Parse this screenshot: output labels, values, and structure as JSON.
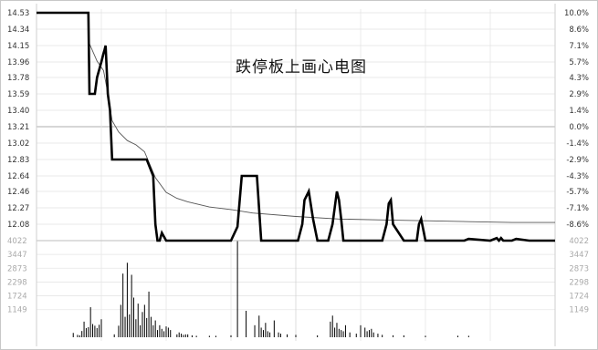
{
  "chart_data": {
    "type": "line",
    "title": "跌停板上画心电图",
    "price_ticks": [
      "14.53",
      "14.34",
      "14.15",
      "13.96",
      "13.78",
      "13.59",
      "13.40",
      "13.21",
      "13.02",
      "12.83",
      "12.64",
      "12.46",
      "12.27",
      "12.08"
    ],
    "pct_ticks": [
      "10.0%",
      "8.6%",
      "7.1%",
      "5.7%",
      "4.3%",
      "2.9%",
      "1.4%",
      "0.0%",
      "-1.4%",
      "-2.9%",
      "-4.3%",
      "-5.7%",
      "-7.1%",
      "-8.6%"
    ],
    "volume_ticks": [
      "4022",
      "3447",
      "2873",
      "2298",
      "1724",
      "1149"
    ],
    "ylim_price": [
      11.89,
      14.53
    ],
    "ylim_volume": [
      0,
      4022
    ],
    "x_minutes_range": [
      0,
      240
    ],
    "series": [
      {
        "role": "price",
        "color": "#000000",
        "x": [
          0,
          24,
          24.5,
          25,
          27,
          28,
          30,
          31,
          31.5,
          32,
          33,
          34,
          35,
          38,
          45,
          51,
          54,
          55,
          56,
          57,
          58,
          60,
          62,
          80,
          90,
          93,
          95,
          100,
          102,
          104,
          112,
          115,
          118,
          121,
          123,
          124,
          126,
          128,
          130,
          133,
          135,
          137,
          138,
          139,
          140,
          141,
          142,
          145,
          150,
          155,
          160,
          162,
          163,
          164,
          165,
          170,
          174,
          176,
          177,
          178,
          180,
          185,
          195,
          198,
          200,
          210,
          213,
          214,
          215,
          216,
          220,
          222,
          228,
          240
        ],
        "y": [
          14.53,
          14.53,
          13.59,
          13.59,
          13.59,
          13.78,
          13.96,
          14.06,
          14.1,
          14.15,
          13.59,
          13.4,
          12.83,
          12.83,
          12.83,
          12.83,
          12.64,
          12.08,
          11.89,
          11.89,
          11.98,
          11.89,
          11.89,
          11.89,
          11.89,
          12.05,
          12.64,
          12.64,
          12.64,
          11.89,
          11.89,
          11.89,
          11.89,
          11.89,
          12.08,
          12.36,
          12.46,
          12.14,
          11.89,
          11.89,
          11.89,
          12.08,
          12.27,
          12.46,
          12.36,
          12.14,
          11.89,
          11.89,
          11.89,
          11.89,
          11.89,
          12.08,
          12.32,
          12.36,
          12.08,
          11.89,
          11.89,
          11.89,
          12.08,
          12.14,
          11.89,
          11.89,
          11.89,
          11.89,
          11.91,
          11.89,
          11.92,
          11.89,
          11.92,
          11.89,
          11.89,
          11.91,
          11.89,
          11.89
        ]
      },
      {
        "role": "average",
        "color": "#555555",
        "x": [
          24,
          28,
          31,
          33,
          35,
          38,
          42,
          46,
          50,
          55,
          60,
          65,
          70,
          80,
          90,
          100,
          120,
          140,
          160,
          180,
          200,
          220,
          240
        ],
        "y": [
          14.2,
          13.97,
          13.86,
          13.6,
          13.28,
          13.15,
          13.05,
          13.0,
          12.92,
          12.62,
          12.45,
          12.38,
          12.34,
          12.28,
          12.25,
          12.21,
          12.17,
          12.14,
          12.13,
          12.12,
          12.11,
          12.1,
          12.1
        ]
      },
      {
        "role": "volume",
        "color": "#000000",
        "x": [
          17,
          19,
          20,
          21,
          22,
          23,
          24,
          25,
          26,
          27,
          28,
          29,
          30,
          36,
          38,
          39,
          40,
          41,
          42,
          43,
          44,
          45,
          46,
          47,
          48,
          49,
          50,
          51,
          52,
          53,
          54,
          55,
          56,
          57,
          58,
          59,
          60,
          61,
          62,
          65,
          66,
          67,
          68,
          69,
          70,
          72,
          74,
          80,
          83,
          90,
          93,
          97,
          101,
          103,
          104,
          105,
          106,
          107,
          108,
          110,
          112,
          113,
          116,
          120,
          130,
          136,
          137,
          138,
          139,
          140,
          141,
          142,
          143,
          145,
          148,
          150,
          152,
          153,
          154,
          155,
          156,
          158,
          160,
          165,
          170,
          180,
          195,
          200
        ],
        "y": [
          180,
          100,
          80,
          260,
          650,
          380,
          420,
          1250,
          550,
          480,
          380,
          520,
          750,
          120,
          480,
          1350,
          2650,
          850,
          3100,
          950,
          2600,
          1650,
          750,
          1400,
          500,
          1050,
          1350,
          800,
          1900,
          850,
          500,
          700,
          300,
          500,
          350,
          250,
          450,
          400,
          300,
          120,
          200,
          150,
          100,
          120,
          120,
          80,
          60,
          60,
          60,
          80,
          4000,
          1100,
          500,
          900,
          400,
          300,
          600,
          250,
          200,
          700,
          200,
          150,
          120,
          100,
          80,
          650,
          900,
          400,
          600,
          350,
          300,
          250,
          500,
          200,
          150,
          500,
          400,
          250,
          300,
          350,
          200,
          150,
          100,
          80,
          80,
          60,
          60,
          60
        ]
      }
    ]
  }
}
